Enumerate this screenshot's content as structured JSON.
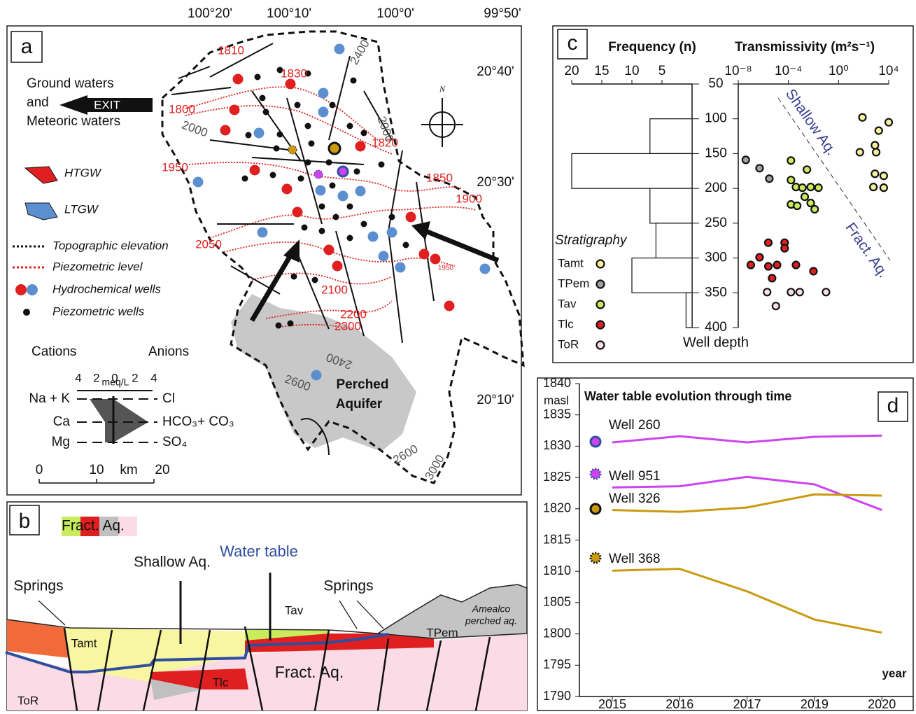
{
  "map": {
    "label": "a",
    "longitudes": [
      "100°20'",
      "100°10'",
      "100°0'",
      "99°50'"
    ],
    "latitudes": [
      "20°40'",
      "20°30'",
      "20°10'"
    ],
    "exit_note": [
      "Ground waters",
      "and",
      "Meteoric waters"
    ],
    "exit": "EXIT",
    "north": "N",
    "legend": {
      "htgw": "HTGW",
      "ltgw": "LTGW",
      "topo": "Topographic elevation",
      "piezo": "Piezometric level",
      "hydro": "Hydrochemical wells",
      "piezo_wells": "Piezometric wells"
    },
    "stiff": {
      "cations": "Cations",
      "anions": "Anions",
      "unit": "meq/L",
      "scale": [
        "4",
        "2",
        "0",
        "2",
        "4"
      ],
      "cation_names": [
        "Na + K",
        "Ca",
        "Mg"
      ],
      "anion_names": [
        "Cl",
        "HCO₃+ CO₃",
        "SO₄"
      ]
    },
    "scale_bar": {
      "ticks": [
        "0",
        "10",
        "20"
      ],
      "unit": "km"
    },
    "contour_labels": [
      "1810",
      "1830",
      "1800",
      "2000",
      "2400",
      "2000",
      "1820",
      "1950",
      "1850",
      "1900",
      "2050",
      "1950",
      "2100",
      "2200",
      "2300",
      "2400",
      "2600",
      "2600",
      "3000"
    ],
    "perched": [
      "Perched",
      "Aquifer"
    ]
  },
  "cross_section": {
    "label": "b",
    "legend": "Fract. Aq.",
    "water_table": "Water table",
    "shallow": "Shallow Aq.",
    "springs": [
      "Springs",
      "Springs"
    ],
    "units": {
      "tav": "Tav",
      "tamt": "Tamt",
      "tlc": "Tlc",
      "tor": "ToR",
      "tpem": "TPem"
    },
    "fract": "Fract. Aq.",
    "amealco": [
      "Amealco",
      "perched aq."
    ]
  },
  "chart_data": [
    {
      "type": "histogram",
      "label": "c",
      "orientation": "horizontal",
      "xlabel": "Frequency (n)",
      "ylabel": "Well depth",
      "bins": [
        50,
        100,
        150,
        200,
        250,
        300,
        350,
        400
      ],
      "counts": [
        0,
        7,
        20,
        7,
        6,
        10,
        1
      ],
      "xlim": [
        20,
        0
      ],
      "xticks": [
        20,
        15,
        10,
        5
      ],
      "ylim": [
        400,
        50
      ],
      "color": "#ffffff"
    },
    {
      "type": "scatter",
      "xlabel": "Transmissivity (m²s⁻¹)",
      "xscale": "log",
      "xlim": [
        1e-08,
        10000
      ],
      "xticks": [
        {
          "value": 1e-08,
          "label": "10⁻⁸"
        },
        {
          "value": 0.0001,
          "label": "10⁻⁴"
        },
        {
          "value": 1,
          "label": "10⁰"
        },
        {
          "value": 10000,
          "label": "10⁴"
        }
      ],
      "ylim": [
        400,
        50
      ],
      "yticks": [
        50,
        100,
        150,
        200,
        250,
        300,
        350,
        400
      ],
      "legend_title": "Stratigraphy",
      "annotations": [
        "Shallow Aq.",
        "Fract. Aq."
      ],
      "series": [
        {
          "name": "Tamt",
          "color": "#f6f19c",
          "x": [
            80,
            10000,
            1600,
            800,
            50,
            1000,
            800,
            4000,
            600,
            4000
          ],
          "y": [
            98,
            105,
            117,
            138,
            148,
            148,
            179,
            182,
            198,
            199
          ]
        },
        {
          "name": "TPem",
          "color": "#a0a0a0",
          "x": [
            4e-08,
            5e-07,
            3e-06
          ],
          "y": [
            159,
            171,
            186
          ]
        },
        {
          "name": "Tav",
          "color": "#c8ec5c",
          "x": [
            0.00016,
            0.003,
            0.00016,
            0.0004,
            0.0013,
            0.006,
            0.025,
            0.002,
            0.00016,
            0.006,
            0.0125,
            0.0005
          ],
          "y": [
            160,
            173,
            188,
            198,
            199,
            198,
            199,
            212,
            223,
            221,
            230,
            225
          ]
        },
        {
          "name": "Tlc",
          "color": "#e02020",
          "x": [
            2.5e-06,
            5e-05,
            5e-05,
            5e-07,
            2.5e-06,
            1e-07,
            1.25e-05,
            0.0004,
            0.01,
            5e-06
          ],
          "y": [
            278,
            278,
            286,
            299,
            312,
            310,
            310,
            310,
            319,
            329
          ]
        },
        {
          "name": "ToR",
          "color": "#fbe0e6",
          "x": [
            2e-06,
            0.00016,
            0.0008,
            0.1,
            1e-05
          ],
          "y": [
            349,
            349,
            349,
            349,
            369
          ]
        }
      ]
    },
    {
      "type": "line",
      "label": "d",
      "title": "Water table evolution through time",
      "ylabel": "masl",
      "xlabel": "year",
      "categories": [
        "2015",
        "2016",
        "2017",
        "2019",
        "2020"
      ],
      "ylim": [
        1790,
        1840
      ],
      "yticks": [
        1790,
        1795,
        1800,
        1805,
        1810,
        1815,
        1820,
        1825,
        1830,
        1835,
        1840
      ],
      "series": [
        {
          "name": "Well 260",
          "color": "#cc44ee",
          "values": [
            1830.6,
            1831.6,
            1830.6,
            1831.5,
            1831.7
          ]
        },
        {
          "name": "Well 951",
          "color": "#cc44ee",
          "values": [
            1823.4,
            1823.6,
            1825.1,
            1823.9,
            1819.8
          ]
        },
        {
          "name": "Well 326",
          "color": "#c99a10",
          "values": [
            1819.8,
            1819.5,
            1820.2,
            1822.3,
            1822.1
          ]
        },
        {
          "name": "Well 368",
          "color": "#c99a10",
          "values": [
            1810.1,
            1810.4,
            1806.8,
            1802.3,
            1800.2
          ]
        }
      ]
    }
  ]
}
